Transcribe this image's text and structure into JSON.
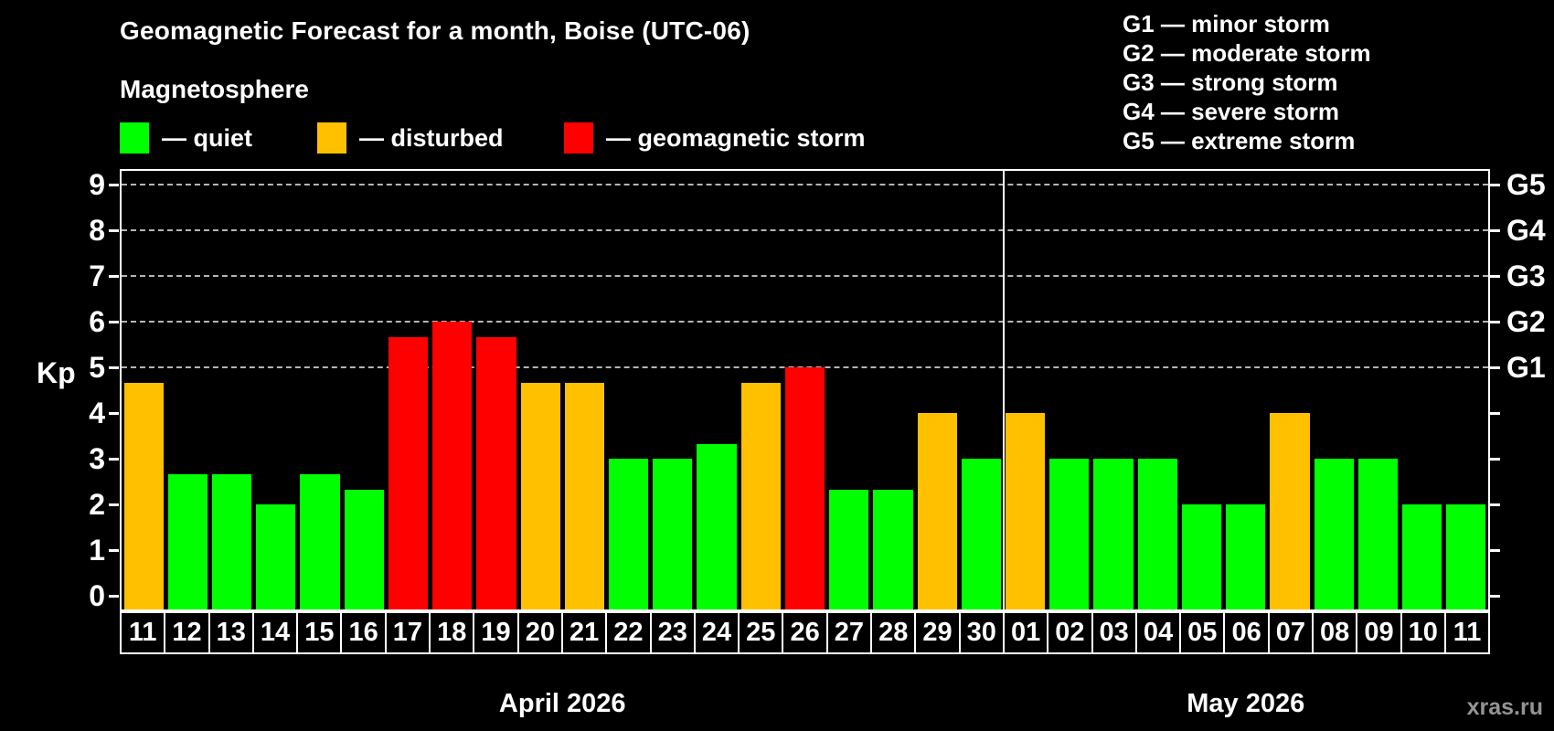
{
  "title": "Geomagnetic Forecast for a month, Boise (UTC-06)",
  "subtitle": "Magnetosphere",
  "legend": {
    "items": [
      {
        "name": "quiet",
        "label": "— quiet",
        "color": "#00ff00"
      },
      {
        "name": "disturbed",
        "label": "— disturbed",
        "color": "#ffc000"
      },
      {
        "name": "storm",
        "label": "— geomagnetic storm",
        "color": "#ff0000"
      }
    ]
  },
  "g_legend": [
    {
      "code": "G1",
      "desc": "minor storm"
    },
    {
      "code": "G2",
      "desc": "moderate storm"
    },
    {
      "code": "G3",
      "desc": "strong storm"
    },
    {
      "code": "G4",
      "desc": "severe storm"
    },
    {
      "code": "G5",
      "desc": "extreme storm"
    }
  ],
  "watermark": "xras.ru",
  "chart_data": {
    "type": "bar",
    "ylabel": "Kp",
    "ylim": [
      0,
      9
    ],
    "yticks": [
      0,
      1,
      2,
      3,
      4,
      5,
      6,
      7,
      8,
      9
    ],
    "grid_kp": [
      5,
      6,
      7,
      8,
      9
    ],
    "grid_style": "dashed",
    "legend_position": "top-left",
    "right_axis": [
      {
        "kp": 5,
        "label": "G1"
      },
      {
        "kp": 6,
        "label": "G2"
      },
      {
        "kp": 7,
        "label": "G3"
      },
      {
        "kp": 8,
        "label": "G4"
      },
      {
        "kp": 9,
        "label": "G5"
      }
    ],
    "status_colors": {
      "quiet": "#00ff00",
      "disturbed": "#ffc000",
      "storm": "#ff0000"
    },
    "months": [
      {
        "label": "April 2026",
        "days": [
          {
            "day": "11",
            "kp": 4.67,
            "status": "disturbed"
          },
          {
            "day": "12",
            "kp": 2.67,
            "status": "quiet"
          },
          {
            "day": "13",
            "kp": 2.67,
            "status": "quiet"
          },
          {
            "day": "14",
            "kp": 2.0,
            "status": "quiet"
          },
          {
            "day": "15",
            "kp": 2.67,
            "status": "quiet"
          },
          {
            "day": "16",
            "kp": 2.33,
            "status": "quiet"
          },
          {
            "day": "17",
            "kp": 5.67,
            "status": "storm"
          },
          {
            "day": "18",
            "kp": 6.0,
            "status": "storm"
          },
          {
            "day": "19",
            "kp": 5.67,
            "status": "storm"
          },
          {
            "day": "20",
            "kp": 4.67,
            "status": "disturbed"
          },
          {
            "day": "21",
            "kp": 4.67,
            "status": "disturbed"
          },
          {
            "day": "22",
            "kp": 3.0,
            "status": "quiet"
          },
          {
            "day": "23",
            "kp": 3.0,
            "status": "quiet"
          },
          {
            "day": "24",
            "kp": 3.33,
            "status": "quiet"
          },
          {
            "day": "25",
            "kp": 4.67,
            "status": "disturbed"
          },
          {
            "day": "26",
            "kp": 5.0,
            "status": "storm"
          },
          {
            "day": "27",
            "kp": 2.33,
            "status": "quiet"
          },
          {
            "day": "28",
            "kp": 2.33,
            "status": "quiet"
          },
          {
            "day": "29",
            "kp": 4.0,
            "status": "disturbed"
          },
          {
            "day": "30",
            "kp": 3.0,
            "status": "quiet"
          }
        ]
      },
      {
        "label": "May 2026",
        "days": [
          {
            "day": "01",
            "kp": 4.0,
            "status": "disturbed"
          },
          {
            "day": "02",
            "kp": 3.0,
            "status": "quiet"
          },
          {
            "day": "03",
            "kp": 3.0,
            "status": "quiet"
          },
          {
            "day": "04",
            "kp": 3.0,
            "status": "quiet"
          },
          {
            "day": "05",
            "kp": 2.0,
            "status": "quiet"
          },
          {
            "day": "06",
            "kp": 2.0,
            "status": "quiet"
          },
          {
            "day": "07",
            "kp": 4.0,
            "status": "disturbed"
          },
          {
            "day": "08",
            "kp": 3.0,
            "status": "quiet"
          },
          {
            "day": "09",
            "kp": 3.0,
            "status": "quiet"
          },
          {
            "day": "10",
            "kp": 2.0,
            "status": "quiet"
          },
          {
            "day": "11",
            "kp": 2.0,
            "status": "quiet"
          }
        ]
      }
    ]
  }
}
